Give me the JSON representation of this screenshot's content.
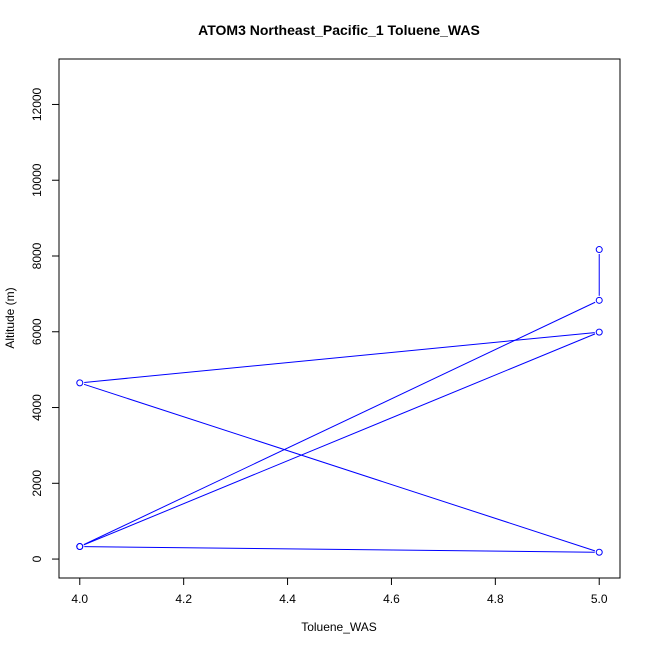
{
  "chart_data": {
    "type": "line",
    "title": "ATOM3 Northeast_Pacific_1 Toluene_WAS",
    "xlabel": "Toluene_WAS",
    "ylabel": "Altitude (m)",
    "xlim": [
      3.96,
      5.04
    ],
    "ylim": [
      -500,
      13200
    ],
    "x_ticks": [
      4.0,
      4.2,
      4.4,
      4.6,
      4.8,
      5.0
    ],
    "x_tick_labels": [
      "4.0",
      "4.2",
      "4.4",
      "4.6",
      "4.8",
      "5.0"
    ],
    "y_ticks": [
      0,
      2000,
      4000,
      6000,
      8000,
      10000,
      12000
    ],
    "y_tick_labels": [
      "0",
      "2000",
      "4000",
      "6000",
      "8000",
      "10000",
      "12000"
    ],
    "grid": false,
    "series": [
      {
        "color": "#0000ff",
        "points": [
          {
            "x": 5.0,
            "y": 8170
          },
          {
            "x": 5.0,
            "y": 6830
          },
          {
            "x": 4.0,
            "y": 330
          },
          {
            "x": 5.0,
            "y": 5990
          },
          {
            "x": 4.0,
            "y": 4650
          },
          {
            "x": 5.0,
            "y": 180
          },
          {
            "x": 4.0,
            "y": 330
          }
        ]
      }
    ]
  }
}
